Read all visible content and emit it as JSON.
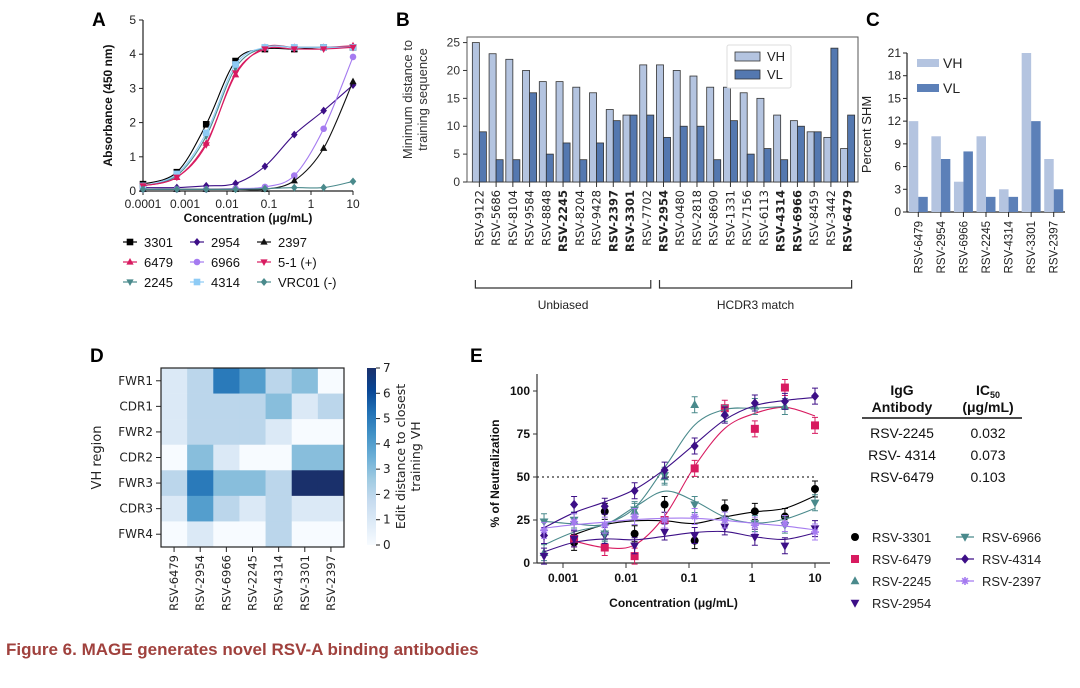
{
  "caption": "Figure 6.  MAGE generates novel RSV-A binding antibodies",
  "chart_data": [
    {
      "panel": "A",
      "type": "line",
      "xscale": "log",
      "xlabel": "Concentration (μg/mL)",
      "ylabel": "Absorbance (450 nm)",
      "xlim": [
        0.0001,
        10
      ],
      "ylim": [
        0,
        5
      ],
      "xticks": [
        "0.0001",
        "0.001",
        "0.01",
        "0.1",
        "1",
        "10"
      ],
      "yticks": [
        "0",
        "1",
        "2",
        "3",
        "4",
        "5"
      ],
      "x": [
        0.0001,
        0.00064,
        0.0032,
        0.016,
        0.08,
        0.4,
        2,
        10
      ],
      "legend_position": "bottom",
      "series": [
        {
          "name": "3301",
          "color": "#000000",
          "marker": "square",
          "values": [
            0.2,
            0.55,
            1.95,
            3.8,
            4.15,
            4.15,
            4.2,
            4.2
          ]
        },
        {
          "name": "6479",
          "color": "#d81b60",
          "marker": "triangle-up",
          "values": [
            0.15,
            0.4,
            1.4,
            3.4,
            4.2,
            4.2,
            4.2,
            4.25
          ]
        },
        {
          "name": "2245",
          "color": "#4a8a8c",
          "marker": "triangle-down",
          "values": [
            0.15,
            0.45,
            1.6,
            3.6,
            4.2,
            4.2,
            4.2,
            4.2
          ]
        },
        {
          "name": "2954",
          "color": "#3d0f87",
          "marker": "diamond",
          "values": [
            0.1,
            0.1,
            0.15,
            0.22,
            0.72,
            1.65,
            2.35,
            3.1
          ]
        },
        {
          "name": "6966",
          "color": "#a57bf0",
          "marker": "circle",
          "values": [
            0.05,
            0.05,
            0.05,
            0.07,
            0.12,
            0.45,
            1.82,
            3.92
          ]
        },
        {
          "name": "4314",
          "color": "#8ecbf5",
          "marker": "square",
          "values": [
            0.15,
            0.5,
            1.7,
            3.7,
            4.2,
            4.2,
            4.2,
            4.2
          ]
        },
        {
          "name": "2397",
          "color": "#111111",
          "marker": "triangle-up",
          "values": [
            0.05,
            0.05,
            0.05,
            0.05,
            0.05,
            0.3,
            1.25,
            3.2
          ]
        },
        {
          "name": "5-1 (+)",
          "color": "#d81b60",
          "marker": "triangle-down",
          "values": [
            0.15,
            0.4,
            1.35,
            3.45,
            4.15,
            4.15,
            4.15,
            4.2
          ]
        },
        {
          "name": "VRC01 (-)",
          "color": "#4a8a8c",
          "marker": "diamond",
          "values": [
            0.05,
            0.05,
            0.05,
            0.05,
            0.07,
            0.1,
            0.1,
            0.28
          ]
        }
      ]
    },
    {
      "panel": "B",
      "type": "bar",
      "ylabel": "Minimum distance to training sequence",
      "ylim": [
        0,
        26
      ],
      "yticks": [
        "0",
        "5",
        "10",
        "15",
        "20",
        "25"
      ],
      "categories": [
        "RSV-9122",
        "RSV-5686",
        "RSV-8104",
        "RSV-9584",
        "RSV-8848",
        "RSV-2245",
        "RSV-8204",
        "RSV-9428",
        "RSV-2397",
        "RSV-3301",
        "RSV-7702",
        "RSV-2954",
        "RSV-0480",
        "RSV-2818",
        "RSV-8690",
        "RSV-1331",
        "RSV-7156",
        "RSV-6113",
        "RSV-4314",
        "RSV-6966",
        "RSV-8459",
        "RSV-3442",
        "RSV-6479"
      ],
      "bold_categories": [
        "RSV-2245",
        "RSV-2397",
        "RSV-3301",
        "RSV-2954",
        "RSV-4314",
        "RSV-6966",
        "RSV-6479"
      ],
      "groups": [
        {
          "label": "Unbiased",
          "from": "RSV-9122",
          "to": "RSV-7702"
        },
        {
          "label": "HCDR3 match",
          "from": "RSV-2954",
          "to": "RSV-6479"
        }
      ],
      "legend_position": "top-right",
      "series": [
        {
          "name": "VH",
          "color": "#b4c4e0",
          "values": [
            25,
            23,
            22,
            20,
            18,
            18,
            17,
            16,
            13,
            12,
            21,
            21,
            20,
            19,
            17,
            17,
            16,
            15,
            12,
            11,
            9,
            8,
            6
          ]
        },
        {
          "name": "VL",
          "color": "#5478b0",
          "values": [
            9,
            4,
            4,
            16,
            5,
            7,
            4,
            7,
            11,
            12,
            12,
            8,
            10,
            10,
            4,
            11,
            5,
            6,
            4,
            10,
            9,
            24,
            12
          ]
        }
      ]
    },
    {
      "panel": "C",
      "type": "bar",
      "ylabel": "Percent  SHM",
      "ylim": [
        0,
        21
      ],
      "yticks": [
        "0",
        "3",
        "6",
        "9",
        "12",
        "15",
        "18",
        "21"
      ],
      "categories": [
        "RSV-6479",
        "RSV-2954",
        "RSV-6966",
        "RSV-2245",
        "RSV-4314",
        "RSV-3301",
        "RSV-2397"
      ],
      "legend_position": "top-left",
      "series": [
        {
          "name": "VH",
          "color": "#b4c4e0",
          "values": [
            12,
            10,
            4,
            10,
            3,
            21,
            7
          ]
        },
        {
          "name": "VL",
          "color": "#5c80b8",
          "values": [
            2,
            7,
            8,
            2,
            2,
            12,
            3
          ]
        }
      ]
    },
    {
      "panel": "D",
      "type": "heatmap",
      "ylabel": "VH region",
      "rows": [
        "FWR1",
        "CDR1",
        "FWR2",
        "CDR2",
        "FWR3",
        "CDR3",
        "FWR4"
      ],
      "columns": [
        "RSV-6479",
        "RSV-2954",
        "RSV-6966",
        "RSV-2245",
        "RSV-4314",
        "RSV-3301",
        "RSV-2397"
      ],
      "values": [
        [
          1,
          2,
          5,
          4,
          2,
          3,
          0
        ],
        [
          1,
          2,
          2,
          2,
          3,
          1,
          2
        ],
        [
          1,
          2,
          2,
          2,
          1,
          0,
          0
        ],
        [
          0,
          3,
          1,
          0,
          0,
          3,
          3
        ],
        [
          2,
          5,
          3,
          3,
          2,
          7,
          7
        ],
        [
          1,
          4,
          2,
          1,
          2,
          1,
          1
        ],
        [
          0,
          1,
          0,
          0,
          2,
          0,
          0
        ]
      ],
      "colorbar_label": "Edit distance to closest training VH",
      "colorbar_range": [
        0,
        7
      ],
      "colorbar_ticks": [
        "0",
        "1",
        "2",
        "3",
        "4",
        "5",
        "6",
        "7"
      ]
    },
    {
      "panel": "E",
      "type": "line",
      "xscale": "log",
      "xlabel": "Concentration (μg/mL)",
      "ylabel": "% of  Neutralization",
      "xlim": [
        0.0004,
        10
      ],
      "ylim": [
        0,
        100
      ],
      "xticks": [
        "0.001",
        "0.01",
        "0.1",
        "1",
        "10"
      ],
      "yticks": [
        "0",
        "25",
        "50",
        "75",
        "100"
      ],
      "reference_line": 50,
      "x": [
        0.0005,
        0.0015,
        0.0046,
        0.0137,
        0.041,
        0.123,
        0.37,
        1.11,
        3.33,
        10
      ],
      "legend_position": "right",
      "series": [
        {
          "name": "RSV-3301",
          "color": "#000000",
          "marker": "circle",
          "values": [
            null,
            12,
            30,
            17,
            34,
            13,
            32,
            30,
            27,
            43
          ]
        },
        {
          "name": "RSV-6479",
          "color": "#d81b60",
          "marker": "square",
          "values": [
            null,
            14,
            9,
            4,
            25,
            55,
            90,
            78,
            102,
            80
          ]
        },
        {
          "name": "RSV-2245",
          "color": "#4a8a8c",
          "marker": "triangle-up",
          "values": [
            6,
            24,
            18,
            30,
            50,
            92,
            87,
            91,
            91,
            null
          ]
        },
        {
          "name": "RSV-2954",
          "color": "#3d0f87",
          "marker": "triangle-down",
          "values": [
            4,
            14,
            16,
            10,
            18,
            16,
            21,
            15,
            10,
            20
          ]
        },
        {
          "name": "RSV-6966",
          "color": "#4a8a8c",
          "marker": "triangle-down",
          "values": [
            24,
            25,
            17,
            31,
            51,
            34,
            25,
            23,
            22,
            35
          ]
        },
        {
          "name": "RSV-4314",
          "color": "#3d0f87",
          "marker": "diamond",
          "values": [
            16,
            34,
            33,
            42,
            54,
            68,
            86,
            93,
            94,
            97
          ]
        },
        {
          "name": "RSV-2397",
          "color": "#a57bf0",
          "marker": "asterisk",
          "values": [
            19,
            24,
            22,
            27,
            25,
            27,
            25,
            22,
            23,
            18
          ]
        }
      ]
    }
  ],
  "ic50_table": {
    "headers": [
      "IgG Antibody",
      "IC50 (μg/mL)"
    ],
    "rows": [
      [
        "RSV-2245",
        "0.032"
      ],
      [
        "RSV- 4314",
        "0.073"
      ],
      [
        "RSV-6479",
        "0.103"
      ]
    ]
  },
  "panel_labels": [
    "A",
    "B",
    "C",
    "D",
    "E"
  ]
}
